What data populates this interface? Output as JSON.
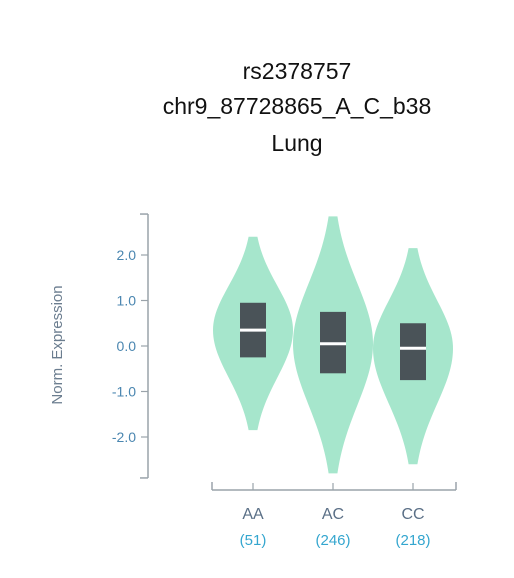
{
  "chart_data": {
    "type": "violin",
    "title": "rs2378757",
    "subtitle": "chr9_87728865_A_C_b38",
    "tissue": "Lung",
    "ylabel": "Norm. Expression",
    "ylim": [
      -2.9,
      2.9
    ],
    "yticks": [
      "2.0",
      "1.0",
      "0.0",
      "-1.0",
      "-2.0"
    ],
    "ytick_values": [
      2.0,
      1.0,
      0.0,
      -1.0,
      -2.0
    ],
    "violin_color": "#a6e6cc",
    "box_color": "#4a5358",
    "median_color": "#ffffff",
    "series": [
      {
        "category": "AA",
        "count": "(51)",
        "min": -1.85,
        "max": 2.4,
        "q1": -0.25,
        "median": 0.35,
        "q3": 0.95
      },
      {
        "category": "AC",
        "count": "(246)",
        "min": -2.8,
        "max": 2.85,
        "q1": -0.6,
        "median": 0.05,
        "q3": 0.75
      },
      {
        "category": "CC",
        "count": "(218)",
        "min": -2.6,
        "max": 2.15,
        "q1": -0.75,
        "median": -0.05,
        "q3": 0.5
      }
    ]
  }
}
